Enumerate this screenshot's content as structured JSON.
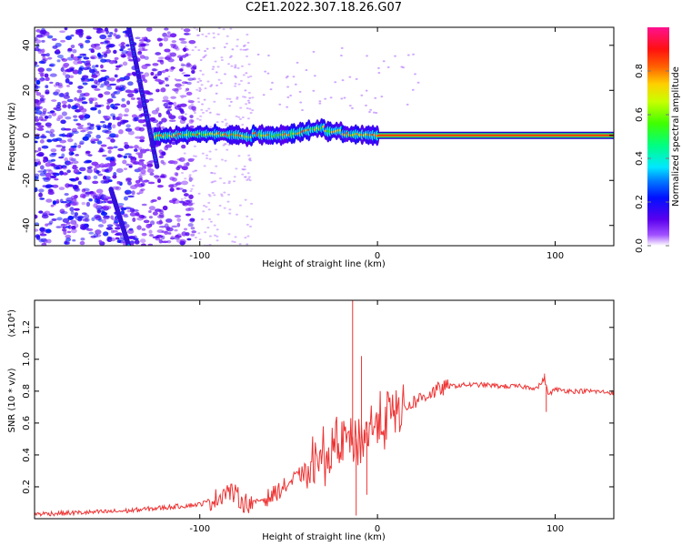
{
  "title": "C2E1.2022.307.18.26.G07",
  "chart_data": [
    {
      "type": "heatmap",
      "xlabel": "Height of straight line (km)",
      "ylabel": "Frequency (Hz)",
      "xlim": [
        -193,
        133
      ],
      "ylim": [
        -49,
        48
      ],
      "xticks": [
        -100,
        0,
        100
      ],
      "yticks": [
        -40,
        -20,
        0,
        20,
        40
      ],
      "colorbar": {
        "label": "Normalized spectral amplitude",
        "range": [
          0.0,
          1.0
        ],
        "ticks": [
          "0.0",
          "0.2",
          "0.4",
          "0.6",
          "0.8"
        ]
      },
      "features": {
        "steady_tone": {
          "x_range": [
            0,
            133
          ],
          "frequency": 0,
          "amplitude": 0.85
        },
        "noisy_tone": {
          "x_range": [
            -125,
            0
          ],
          "frequency_range": [
            -3,
            6
          ]
        },
        "descending_line": {
          "points": [
            [
              -140,
              48
            ],
            [
              -124,
              -14
            ]
          ]
        },
        "lower_line": {
          "points": [
            [
              -150,
              -24
            ],
            [
              -140,
              -49
            ]
          ]
        }
      }
    },
    {
      "type": "line",
      "xlabel": "Height of straight line (km)",
      "ylabel": "SNR (10 * v/v)",
      "y_multiplier": "(x10⁴)",
      "xlim": [
        -193,
        133
      ],
      "ylim": [
        0,
        1.37
      ],
      "xticks": [
        -100,
        0,
        100
      ],
      "yticks": [
        "0.2",
        "0.4",
        "0.6",
        "0.8",
        "1.0",
        "1.2"
      ],
      "color": "#ee3333",
      "series": [
        {
          "x": [
            -193,
            -160,
            -140,
            -120,
            -100,
            -90,
            -85,
            -80,
            -75,
            -70,
            -60,
            -50,
            -40,
            -30,
            -20,
            -15,
            -10,
            -5,
            0,
            10,
            20,
            30,
            40,
            50,
            60,
            70,
            80,
            90,
            94,
            96,
            100,
            110,
            120,
            133
          ],
          "y": [
            0.03,
            0.04,
            0.05,
            0.07,
            0.09,
            0.13,
            0.18,
            0.15,
            0.1,
            0.1,
            0.14,
            0.22,
            0.3,
            0.38,
            0.48,
            0.5,
            0.5,
            0.55,
            0.6,
            0.66,
            0.73,
            0.79,
            0.83,
            0.84,
            0.84,
            0.83,
            0.83,
            0.82,
            0.88,
            0.78,
            0.81,
            0.8,
            0.8,
            0.79
          ]
        }
      ],
      "spikes": [
        {
          "x": -14,
          "y": 1.37
        },
        {
          "x": -12,
          "y": 0.02
        },
        {
          "x": -9,
          "y": 1.02
        },
        {
          "x": -6,
          "y": 0.15
        },
        {
          "x": 94,
          "y": 0.91
        },
        {
          "x": 95,
          "y": 0.67
        }
      ]
    }
  ]
}
